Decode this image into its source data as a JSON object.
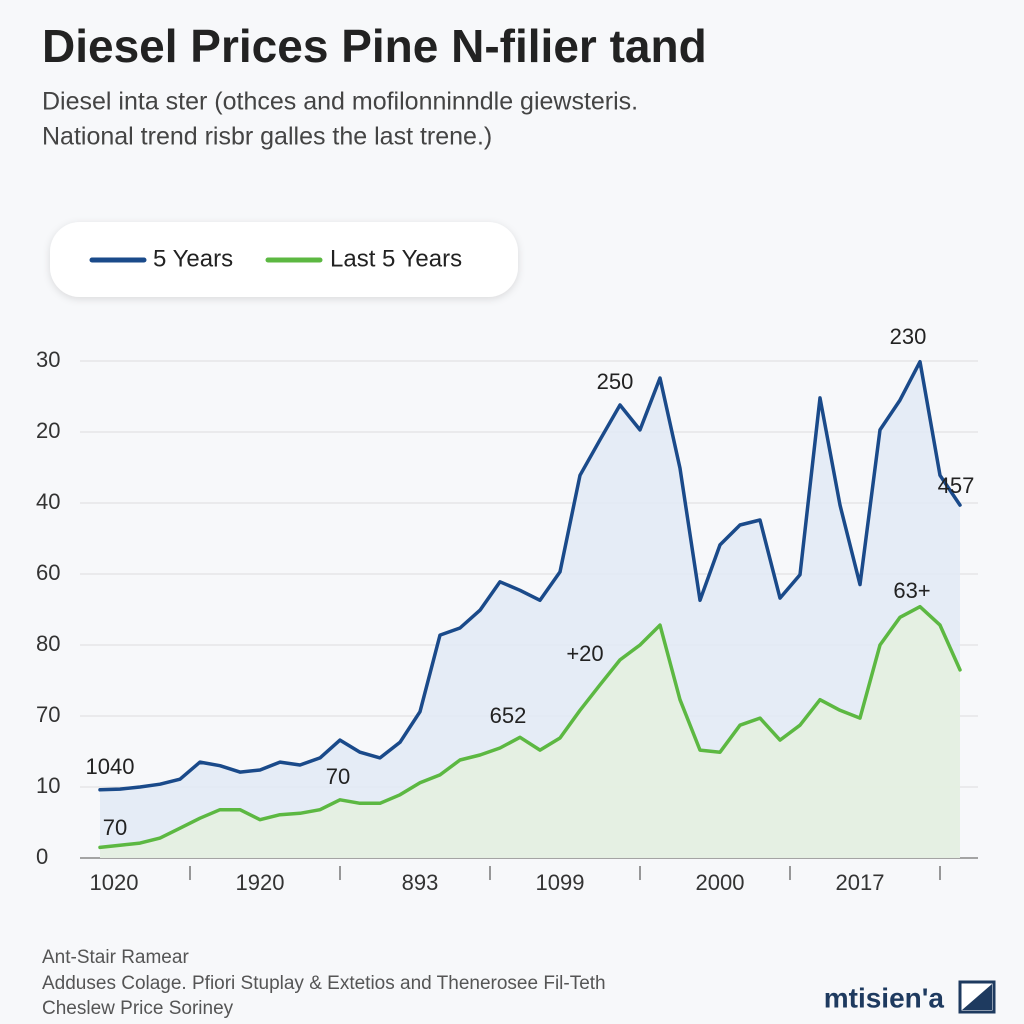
{
  "chart_data": {
    "type": "line",
    "title": "Diesel Prices Pine N-filier tand",
    "subtitle": [
      "Diesel inta ster (othces and mofilonninndle giewsteris.",
      "National trend risbr galles the last trene.)"
    ],
    "categories": [
      "1020",
      null,
      null,
      null,
      null,
      null,
      null,
      null,
      "1920",
      null,
      null,
      null,
      null,
      null,
      null,
      null,
      "893",
      null,
      null,
      null,
      null,
      null,
      null,
      "1099",
      null,
      null,
      null,
      null,
      null,
      null,
      null,
      "2000",
      null,
      null,
      null,
      null,
      null,
      null,
      "2017",
      null,
      null,
      null,
      null,
      null
    ],
    "series": [
      {
        "name": "5 Years",
        "color": "#1a4a8a",
        "fill": "#e2eaf5",
        "values": [
          9.6,
          9.7,
          10.0,
          10.4,
          11.1,
          13.5,
          13.0,
          12.1,
          12.4,
          13.5,
          13.1,
          14.1,
          16.6,
          14.9,
          14.1,
          16.3,
          20.6,
          31.4,
          32.4,
          34.9,
          38.9,
          37.7,
          36.3,
          40.3,
          53.9,
          58.9,
          63.8,
          60.3,
          67.6,
          54.9,
          36.3,
          44.1,
          46.9,
          47.6,
          36.6,
          39.9,
          64.8,
          49.7,
          38.5,
          60.3,
          64.5,
          69.9,
          53.9,
          49.7
        ]
      },
      {
        "name": "Last 5 Years",
        "color": "#5cb842",
        "fill": "#e5f1df",
        "values": [
          1.5,
          1.8,
          2.1,
          2.8,
          4.2,
          5.6,
          6.8,
          6.8,
          5.4,
          6.1,
          6.3,
          6.8,
          8.2,
          7.7,
          7.7,
          8.9,
          10.6,
          11.7,
          13.8,
          14.5,
          15.5,
          17.0,
          15.2,
          16.9,
          20.8,
          24.4,
          27.9,
          30.0,
          32.8,
          22.3,
          15.2,
          14.9,
          18.7,
          19.7,
          16.6,
          18.7,
          22.3,
          20.8,
          19.7,
          30.0,
          33.9,
          35.4,
          32.8,
          26.5
        ]
      }
    ],
    "ylim": [
      0,
      70
    ],
    "yticks": [
      0,
      10,
      {
        "value": 20,
        "label": "70"
      },
      {
        "value": 30,
        "label": "80"
      },
      {
        "value": 40,
        "label": "60"
      },
      {
        "value": 50,
        "label": "40"
      },
      {
        "value": 60,
        "label": "20"
      },
      {
        "value": 70,
        "label": "30"
      }
    ],
    "grid": true,
    "annotations": [
      "1040",
      "70",
      "70",
      "652",
      "+20",
      "250",
      "230",
      "457",
      "63+"
    ],
    "footer": [
      "Ant-Stair Ramear",
      "Adduses Colage. Pfiori Stuplay & Extetios and Thenerosee Fil-Teth",
      "Cheslew Price Soriney"
    ],
    "brand": "mtisien'a"
  }
}
